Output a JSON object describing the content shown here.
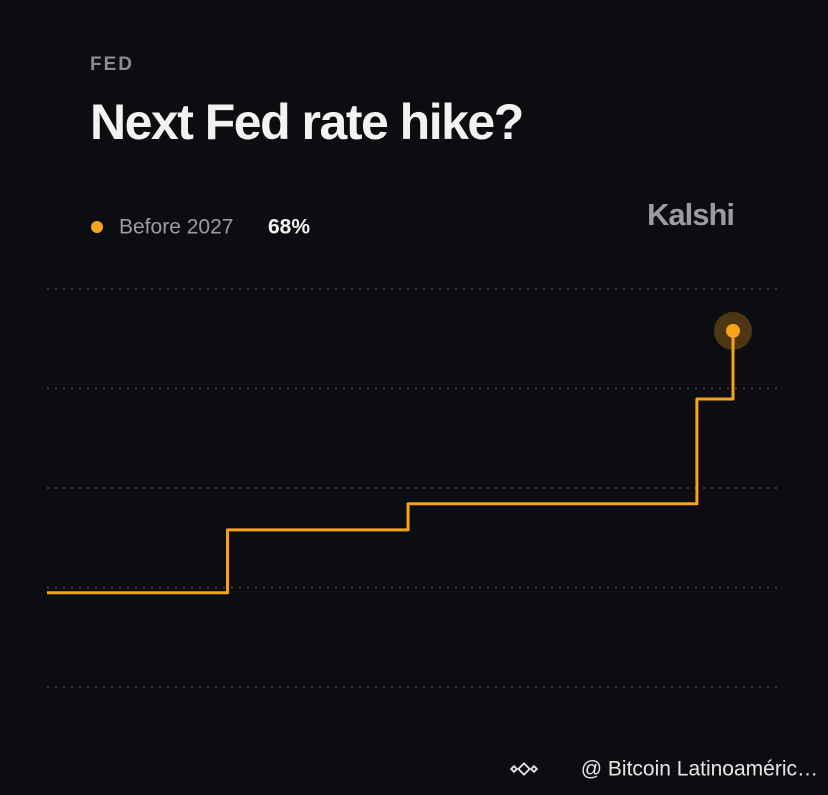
{
  "chart_data": {
    "type": "step-line",
    "category_label": "FED",
    "title": "Next Fed rate hike?",
    "brand": "Kalshi",
    "watermark": "@ Bitcoin Latinoaméric…",
    "categories": [
      null,
      null,
      null,
      null,
      null,
      null,
      null,
      null,
      null,
      null,
      null,
      null,
      null,
      null,
      null,
      null,
      null,
      null,
      null,
      null
    ],
    "series": [
      {
        "name": "Before 2027",
        "color": "#f7a21b",
        "values": [
          18,
          18,
          18,
          18,
          18,
          30,
          30,
          30,
          30,
          30,
          35,
          35,
          35,
          35,
          35,
          35,
          35,
          35,
          55,
          68
        ]
      }
    ],
    "current": {
      "value": 68,
      "label": "68%"
    },
    "ylim": [
      0,
      76
    ],
    "yticks": [
      0,
      19,
      38,
      57,
      76
    ],
    "grid": true
  }
}
